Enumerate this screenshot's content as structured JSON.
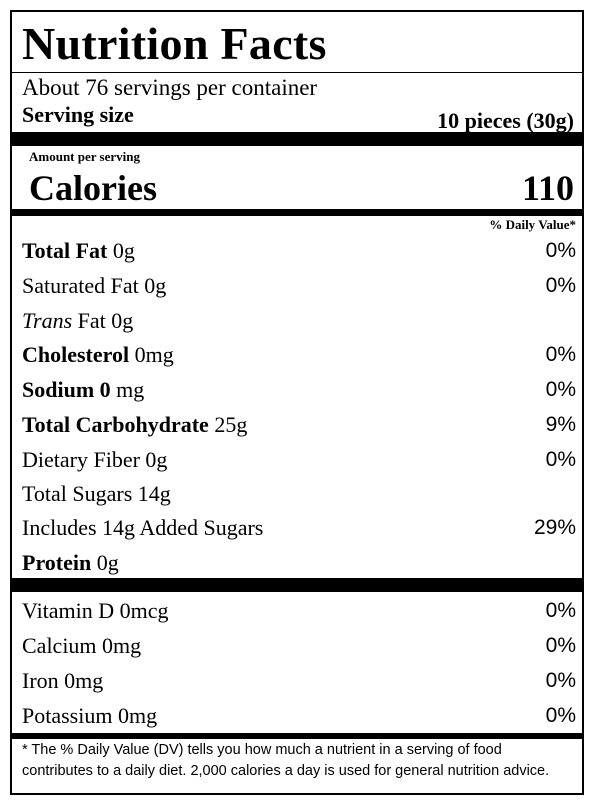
{
  "title": "Nutrition Facts",
  "servings_per_container": "About 76 servings per container",
  "serving_size": {
    "label": "Serving size",
    "value": "10 pieces (30g)"
  },
  "amount_per_serving": "Amount per serving",
  "calories": {
    "label": "Calories",
    "value": "110"
  },
  "daily_value_header": "% Daily Value*",
  "nutrients": [
    {
      "bold": "Total Fat",
      "amount": " 0g",
      "dv": "0%"
    },
    {
      "name": "Saturated Fat 0g",
      "dv": "0%"
    },
    {
      "italic": "Trans",
      "rest": " Fat 0g",
      "dv": ""
    },
    {
      "bold": "Cholesterol",
      "amount": " 0mg",
      "dv": "0%"
    },
    {
      "bold": "Sodium 0",
      "amount": " mg",
      "dv": "0%"
    },
    {
      "bold": "Total Carbohydrate",
      "amount": " 25g",
      "dv": "9%"
    },
    {
      "name": "Dietary Fiber 0g",
      "dv": "0%"
    },
    {
      "name": "Total Sugars 14g",
      "dv": ""
    },
    {
      "name": "Includes 14g Added Sugars",
      "dv": "29%"
    },
    {
      "bold": "Protein",
      "amount": " 0g",
      "dv": ""
    }
  ],
  "vitamins": [
    {
      "name": "Vitamin D 0mcg",
      "dv": "0%"
    },
    {
      "name": "Calcium 0mg",
      "dv": "0%"
    },
    {
      "name": "Iron 0mg",
      "dv": "0%"
    },
    {
      "name": "Potassium 0mg",
      "dv": "0%"
    }
  ],
  "footnote": "* The % Daily Value (DV) tells you how much a nutrient in a serving of food contributes to a daily diet. 2,000 calories a day is  used for general nutrition advice."
}
